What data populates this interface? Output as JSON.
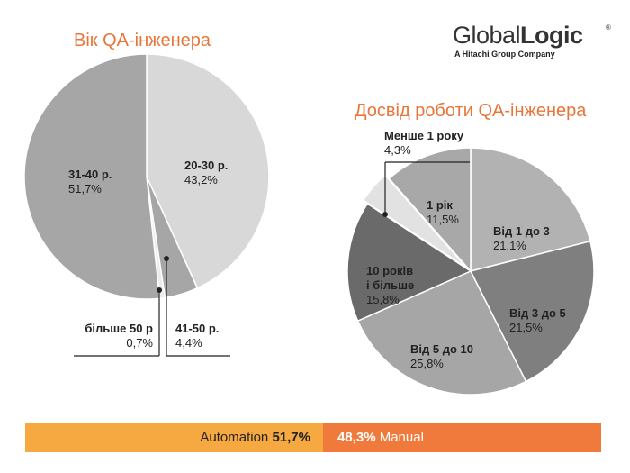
{
  "logo": {
    "main_regular": "Global",
    "main_bold": "Logic",
    "registered": "®",
    "tagline": "A Hitachi Group Company"
  },
  "colors": {
    "accent": "#e8763a",
    "automation": "#f6a940",
    "manual": "#ef7a3c"
  },
  "chart_data": [
    {
      "type": "pie",
      "title": "Вік QA-інженера",
      "slices": [
        {
          "label": "20-30 р.",
          "value_label": "43,2%",
          "value": 43.2,
          "color": "#d8d8d8"
        },
        {
          "label": "41-50 р.",
          "value_label": "4,4%",
          "value": 4.4,
          "color": "#a6a6a6"
        },
        {
          "label": "більше 50 р",
          "value_label": "0,7%",
          "value": 0.7,
          "color": "#ececec"
        },
        {
          "label": "31-40 р.",
          "value_label": "51,7%",
          "value": 51.7,
          "color": "#a6a6a6"
        }
      ]
    },
    {
      "type": "pie",
      "title": "Досвід роботи QA-інженера",
      "slices": [
        {
          "label": "Від 1 до 3",
          "value_label": "21,1%",
          "value": 21.1,
          "color": "#b2b2b2"
        },
        {
          "label": "Від 3 до 5",
          "value_label": "21,5%",
          "value": 21.5,
          "color": "#7f7f7f"
        },
        {
          "label": "Від 5 до 10",
          "value_label": "25,8%",
          "value": 25.8,
          "color": "#a6a6a6"
        },
        {
          "label": "10 років і більше",
          "value_label": "15,8%",
          "value": 15.8,
          "color": "#6a6a6a"
        },
        {
          "label": "Менше 1 року",
          "value_label": "4,3%",
          "value": 4.3,
          "color": "#e2e2e2"
        },
        {
          "label": "1 рік",
          "value_label": "11,5%",
          "value": 11.5,
          "color": "#a8a8a8"
        }
      ]
    },
    {
      "type": "bar",
      "orientation": "horizontal-stacked",
      "categories": [
        "Automation",
        "Manual"
      ],
      "values": [
        51.7,
        48.3
      ],
      "value_labels": [
        "51,7%",
        "48,3%"
      ]
    }
  ],
  "labels": {
    "age": {
      "s2030": {
        "cat": "20-30 р.",
        "val": "43,2%"
      },
      "s4150": {
        "cat": "41-50 р.",
        "val": "4,4%"
      },
      "s50": {
        "cat": "більше 50 р",
        "val": "0,7%"
      },
      "s3140": {
        "cat": "31-40 р.",
        "val": "51,7%"
      }
    },
    "exp": {
      "s13": {
        "cat": "Від 1 до 3",
        "val": "21,1%"
      },
      "s35": {
        "cat": "Від 3 до 5",
        "val": "21,5%"
      },
      "s510": {
        "cat": "Від 5 до 10",
        "val": "25,8%"
      },
      "s10": {
        "cat1": "10 років",
        "cat2": "і більше",
        "val": "15,8%"
      },
      "s1less": {
        "cat": "Менше 1 року",
        "val": "4,3%"
      },
      "s1": {
        "cat": "1 рік",
        "val": "11,5%"
      }
    }
  },
  "bar": {
    "automation_label": "Automation",
    "automation_value": "51,7%",
    "manual_value": "48,3%",
    "manual_label": "Manual"
  }
}
